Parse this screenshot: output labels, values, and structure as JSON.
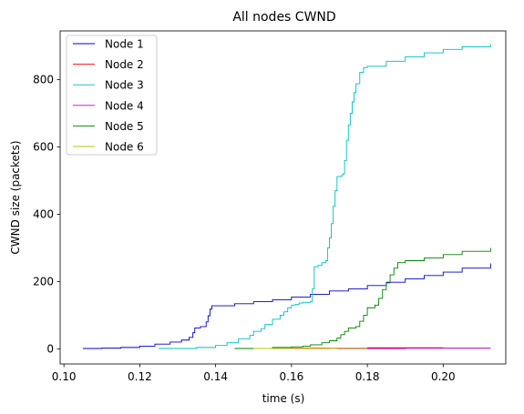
{
  "chart_data": {
    "type": "line",
    "title": "All nodes CWND",
    "xlabel": "time (s)",
    "ylabel": "CWND size (packets)",
    "xlim": [
      0.099,
      0.2165
    ],
    "ylim": [
      -45,
      945
    ],
    "xticks": [
      0.1,
      0.12,
      0.14,
      0.16,
      0.18,
      0.2
    ],
    "xtick_labels": [
      "0.10",
      "0.12",
      "0.14",
      "0.16",
      "0.18",
      "0.20"
    ],
    "yticks": [
      0,
      200,
      400,
      600,
      800
    ],
    "ytick_labels": [
      "0",
      "200",
      "400",
      "600",
      "800"
    ],
    "grid": false,
    "legend_position": "top-left",
    "series": [
      {
        "name": "Node 1",
        "color": "#0000cc",
        "step": true,
        "points": [
          [
            0.105,
            1
          ],
          [
            0.11,
            2
          ],
          [
            0.115,
            4
          ],
          [
            0.12,
            8
          ],
          [
            0.124,
            14
          ],
          [
            0.128,
            20
          ],
          [
            0.131,
            26
          ],
          [
            0.133,
            34
          ],
          [
            0.134,
            48
          ],
          [
            0.1345,
            62
          ],
          [
            0.136,
            66
          ],
          [
            0.1375,
            80
          ],
          [
            0.138,
            98
          ],
          [
            0.1385,
            118
          ],
          [
            0.139,
            128
          ],
          [
            0.145,
            134
          ],
          [
            0.15,
            140
          ],
          [
            0.155,
            146
          ],
          [
            0.16,
            154
          ],
          [
            0.165,
            162
          ],
          [
            0.17,
            172
          ],
          [
            0.175,
            178
          ],
          [
            0.18,
            188
          ],
          [
            0.185,
            198
          ],
          [
            0.19,
            208
          ],
          [
            0.195,
            218
          ],
          [
            0.2,
            228
          ],
          [
            0.205,
            240
          ],
          [
            0.2125,
            254
          ]
        ]
      },
      {
        "name": "Node 2",
        "color": "#ff0000",
        "step": true,
        "points": [
          [
            0.15,
            1
          ],
          [
            0.16,
            2
          ],
          [
            0.17,
            2
          ],
          [
            0.18,
            3
          ],
          [
            0.19,
            3
          ],
          [
            0.2,
            3
          ]
        ]
      },
      {
        "name": "Node 3",
        "color": "#00bfbf",
        "step": true,
        "points": [
          [
            0.125,
            1
          ],
          [
            0.135,
            4
          ],
          [
            0.14,
            10
          ],
          [
            0.143,
            18
          ],
          [
            0.146,
            30
          ],
          [
            0.149,
            40
          ],
          [
            0.15,
            52
          ],
          [
            0.152,
            60
          ],
          [
            0.153,
            72
          ],
          [
            0.155,
            88
          ],
          [
            0.157,
            100
          ],
          [
            0.158,
            110
          ],
          [
            0.159,
            122
          ],
          [
            0.16,
            130
          ],
          [
            0.161,
            132
          ],
          [
            0.162,
            136
          ],
          [
            0.163,
            138
          ],
          [
            0.165,
            140
          ],
          [
            0.1655,
            178
          ],
          [
            0.166,
            244
          ],
          [
            0.167,
            248
          ],
          [
            0.168,
            256
          ],
          [
            0.169,
            262
          ],
          [
            0.1695,
            300
          ],
          [
            0.17,
            330
          ],
          [
            0.1705,
            372
          ],
          [
            0.171,
            424
          ],
          [
            0.1715,
            470
          ],
          [
            0.172,
            512
          ],
          [
            0.173,
            514
          ],
          [
            0.1735,
            520
          ],
          [
            0.174,
            560
          ],
          [
            0.1745,
            620
          ],
          [
            0.175,
            666
          ],
          [
            0.1755,
            700
          ],
          [
            0.176,
            734
          ],
          [
            0.1765,
            762
          ],
          [
            0.177,
            788
          ],
          [
            0.178,
            822
          ],
          [
            0.179,
            836
          ],
          [
            0.18,
            840
          ],
          [
            0.185,
            855
          ],
          [
            0.19,
            868
          ],
          [
            0.195,
            880
          ],
          [
            0.2,
            890
          ],
          [
            0.205,
            898
          ],
          [
            0.2125,
            906
          ]
        ]
      },
      {
        "name": "Node 4",
        "color": "#bf00bf",
        "step": true,
        "points": [
          [
            0.172,
            1
          ],
          [
            0.19,
            2
          ],
          [
            0.2,
            2
          ],
          [
            0.2125,
            2
          ]
        ]
      },
      {
        "name": "Node 5",
        "color": "#008000",
        "step": true,
        "points": [
          [
            0.145,
            1
          ],
          [
            0.155,
            4
          ],
          [
            0.16,
            6
          ],
          [
            0.163,
            8
          ],
          [
            0.165,
            12
          ],
          [
            0.168,
            18
          ],
          [
            0.17,
            24
          ],
          [
            0.172,
            32
          ],
          [
            0.173,
            42
          ],
          [
            0.174,
            52
          ],
          [
            0.175,
            62
          ],
          [
            0.177,
            66
          ],
          [
            0.178,
            82
          ],
          [
            0.179,
            100
          ],
          [
            0.18,
            122
          ],
          [
            0.182,
            130
          ],
          [
            0.183,
            150
          ],
          [
            0.184,
            176
          ],
          [
            0.185,
            196
          ],
          [
            0.186,
            220
          ],
          [
            0.187,
            240
          ],
          [
            0.188,
            256
          ],
          [
            0.19,
            262
          ],
          [
            0.195,
            270
          ],
          [
            0.2,
            280
          ],
          [
            0.205,
            290
          ],
          [
            0.2125,
            300
          ]
        ]
      },
      {
        "name": "Node 6",
        "color": "#bfbf00",
        "step": true,
        "points": [
          [
            0.15,
            1
          ],
          [
            0.16,
            1
          ],
          [
            0.17,
            2
          ],
          [
            0.18,
            2
          ]
        ]
      }
    ]
  }
}
